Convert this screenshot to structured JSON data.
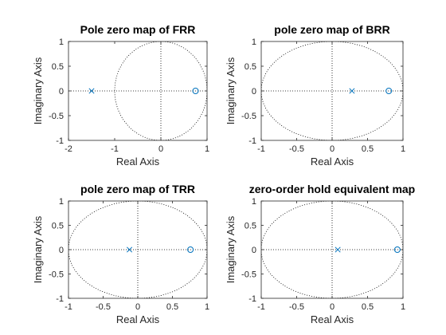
{
  "chart_data": [
    {
      "type": "scatter",
      "title": "Pole zero map of FRR",
      "xlabel": "Real Axis",
      "ylabel": "Imaginary Axis",
      "xlim": [
        -2,
        1
      ],
      "ylim": [
        -1,
        1
      ],
      "xticks": [
        -2,
        -1,
        0,
        1
      ],
      "yticks": [
        -1,
        -0.5,
        0,
        0.5,
        1
      ],
      "unit_circle": true,
      "poles": [
        {
          "re": -1.5,
          "im": 0
        }
      ],
      "zeros": [
        {
          "re": 0.75,
          "im": 0
        }
      ]
    },
    {
      "type": "scatter",
      "title": "pole zero map of BRR",
      "xlabel": "Real Axis",
      "ylabel": "Imaginary Axis",
      "xlim": [
        -1,
        1
      ],
      "ylim": [
        -1,
        1
      ],
      "xticks": [
        -1,
        -0.5,
        0,
        0.5,
        1
      ],
      "yticks": [
        -1,
        -0.5,
        0,
        0.5,
        1
      ],
      "unit_circle": true,
      "poles": [
        {
          "re": 0.28,
          "im": 0
        }
      ],
      "zeros": [
        {
          "re": 0.8,
          "im": 0
        }
      ]
    },
    {
      "type": "scatter",
      "title": "pole zero map of TRR",
      "xlabel": "Real Axis",
      "ylabel": "Imaginary Axis",
      "xlim": [
        -1,
        1
      ],
      "ylim": [
        -1,
        1
      ],
      "xticks": [
        -1,
        -0.5,
        0,
        0.5,
        1
      ],
      "yticks": [
        -1,
        -0.5,
        0,
        0.5,
        1
      ],
      "unit_circle": true,
      "poles": [
        {
          "re": -0.12,
          "im": 0
        }
      ],
      "zeros": [
        {
          "re": 0.76,
          "im": 0
        }
      ]
    },
    {
      "type": "scatter",
      "title": "zero-order hold equivalent map",
      "xlabel": "Real Axis",
      "ylabel": "Imaginary Axis",
      "xlim": [
        -1,
        1
      ],
      "ylim": [
        -1,
        1
      ],
      "xticks": [
        -1,
        -0.5,
        0,
        0.5,
        1
      ],
      "yticks": [
        -1,
        -0.5,
        0,
        0.5,
        1
      ],
      "unit_circle": true,
      "poles": [
        {
          "re": 0.08,
          "im": 0
        }
      ],
      "zeros": [
        {
          "re": 0.92,
          "im": 0
        }
      ]
    }
  ],
  "colors": {
    "marker": "#0072bd",
    "axes": "#262626",
    "dotted": "#000000"
  }
}
